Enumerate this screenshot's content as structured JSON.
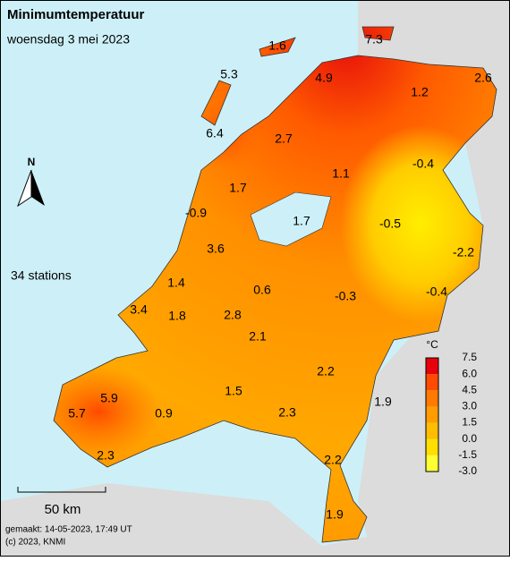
{
  "header": {
    "title": "Minimumtemperatuur",
    "subtitle": "woensdag 3 mei 2023"
  },
  "stations_count": "34 stations",
  "north": "N",
  "stations": [
    "7.3",
    "1.6",
    "5.3",
    "4.9",
    "1.2",
    "2.6",
    "6.4",
    "2.7",
    "1.1",
    "-0.4",
    "1.7",
    "-0.9",
    "1.7",
    "-0.5",
    "-2.2",
    "3.6",
    "0.6",
    "-0.3",
    "-0.4",
    "1.4",
    "3.4",
    "1.8",
    "2.8",
    "2.1",
    "2.2",
    "5.9",
    "1.5",
    "1.9",
    "5.7",
    "0.9",
    "2.3",
    "2.3",
    "2.2",
    "1.9"
  ],
  "legend": {
    "unit": "°C",
    "labels": [
      "7.5",
      "6.0",
      "4.5",
      "3.0",
      "1.5",
      "0.0",
      "-1.5",
      "-3.0"
    ],
    "colors": [
      "#e8000b",
      "#ff4a00",
      "#ff7a00",
      "#ff9d00",
      "#ffbe00",
      "#ffde00",
      "#ffff33"
    ]
  },
  "scale": "50 km",
  "footer": [
    "gemaakt: 14-05-2023, 17:49 UT",
    "(c) 2023, KNMI"
  ]
}
